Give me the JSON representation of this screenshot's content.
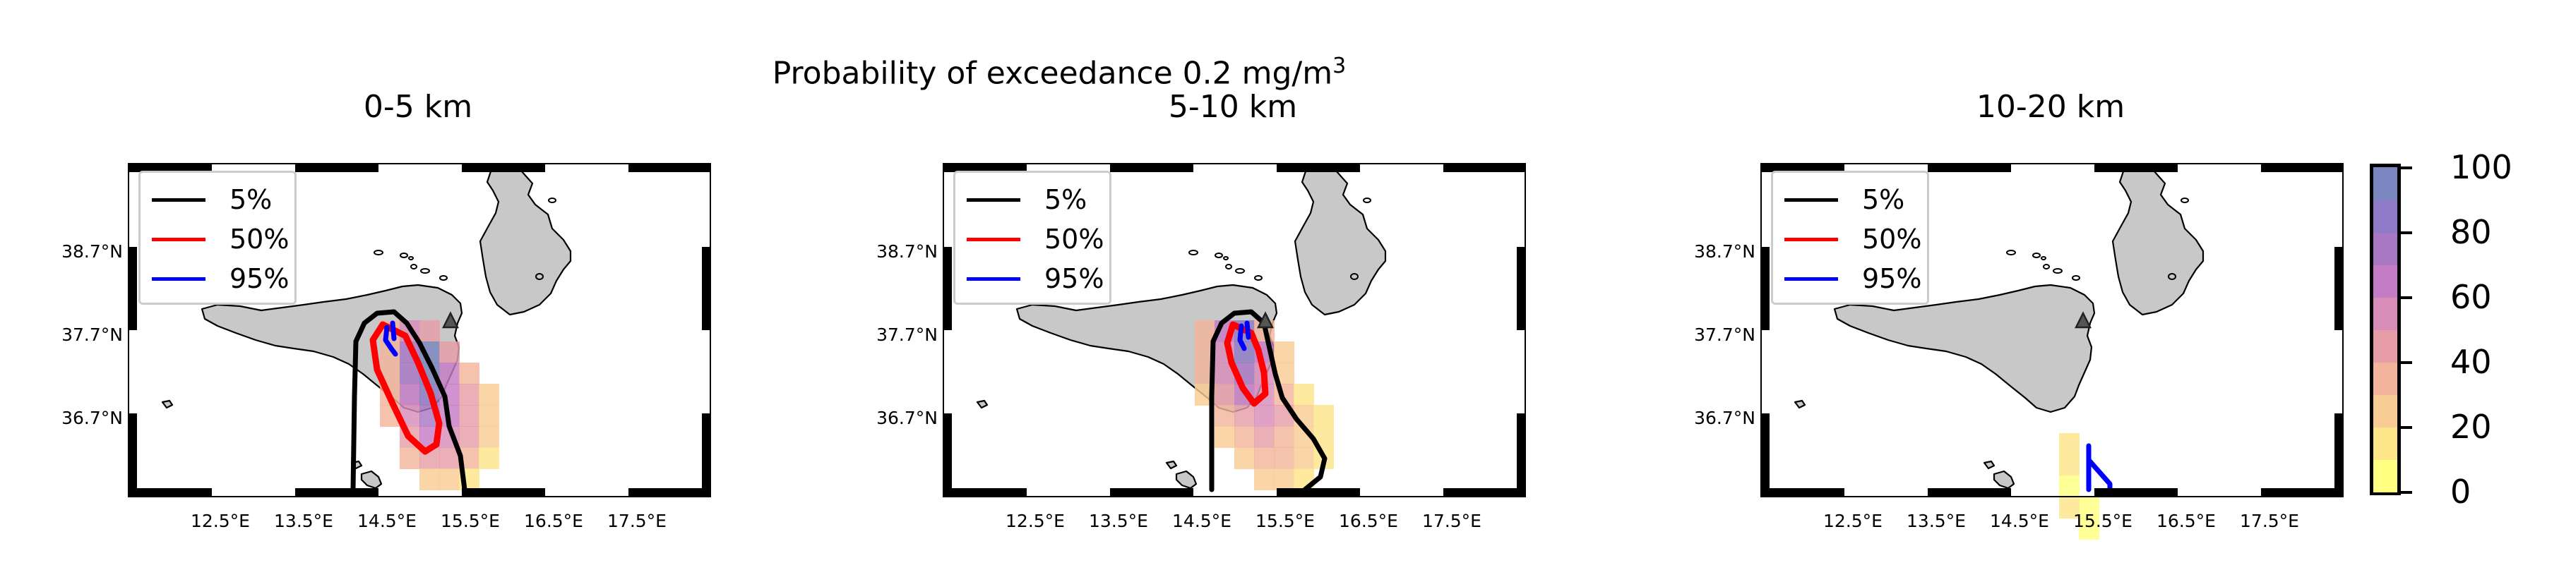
{
  "figure": {
    "suptitle_line1": "Probability of exceedance 0.2 mg/m",
    "suptitle_superscript": "3",
    "panel_titles": [
      "0-5 km",
      "5-10 km",
      "10-20 km"
    ]
  },
  "map": {
    "x_tick_labels": [
      "12.5°E",
      "13.5°E",
      "14.5°E",
      "15.5°E",
      "16.5°E",
      "17.5°E"
    ],
    "y_tick_labels": [
      "38.7°N",
      "37.7°N",
      "36.7°N"
    ],
    "land_color": "#c8c8c8",
    "volcano_marker": "triangle",
    "legend": [
      {
        "label": "5%",
        "color": "#000000"
      },
      {
        "label": "50%",
        "color": "#ff0000"
      },
      {
        "label": "95%",
        "color": "#0000ff"
      }
    ]
  },
  "colorbar": {
    "tick_labels": [
      "100",
      "80",
      "60",
      "40",
      "20",
      "0"
    ],
    "colors": [
      "#ffff80",
      "#fde58a",
      "#f8cc94",
      "#f2b49b",
      "#e79da8",
      "#d88cb8",
      "#c47dc4",
      "#a978c4",
      "#8e7ac6",
      "#7a86c0"
    ]
  }
}
